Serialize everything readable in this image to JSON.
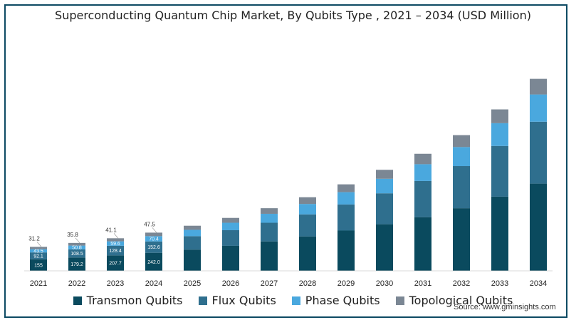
{
  "title": "Superconducting Quantum Chip Market, By Qubits Type , 2021 – 2034 (USD Million)",
  "source": "Source: www.gminsights.com",
  "colors": {
    "Transmon Qubits": "#0a4a5e",
    "Flux Qubits": "#2f6f8e",
    "Phase Qubits": "#4aa8de",
    "Topological Qubits": "#7b8794",
    "frame": "#0d4a63"
  },
  "chart_data": {
    "type": "bar",
    "stacked": true,
    "title": "Superconducting Quantum Chip Market, By Qubits Type , 2021 – 2034 (USD Million)",
    "categories": [
      "2021",
      "2022",
      "2023",
      "2024",
      "2025",
      "2026",
      "2027",
      "2028",
      "2029",
      "2030",
      "2031",
      "2032",
      "2033",
      "2034"
    ],
    "series": [
      {
        "name": "Transmon Qubits",
        "values": [
          155,
          179.2,
          207.7,
          242.0,
          285,
          335,
          395,
          462,
          540,
          625,
          720,
          840,
          995,
          1170
        ],
        "labels": [
          "155",
          "179.2",
          "207.7",
          "242.0",
          "",
          "",
          "",
          "",
          "",
          "",
          "",
          "",
          "",
          ""
        ]
      },
      {
        "name": "Flux Qubits",
        "values": [
          92.1,
          108.5,
          128.4,
          152.6,
          180,
          210,
          250,
          295,
          350,
          415,
          485,
          565,
          680,
          830
        ],
        "labels": [
          "92.1",
          "108.5",
          "128.4",
          "152.6",
          "",
          "",
          "",
          "",
          "",
          "",
          "",
          "",
          "",
          ""
        ]
      },
      {
        "name": "Phase Qubits",
        "values": [
          43.5,
          50.8,
          59.6,
          70.4,
          85,
          100,
          120,
          140,
          165,
          195,
          225,
          255,
          305,
          365
        ],
        "labels": [
          "43.5",
          "50.8",
          "59.6",
          "70.4",
          "",
          "",
          "",
          "",
          "",
          "",
          "",
          "",
          "",
          ""
        ]
      },
      {
        "name": "Topological Qubits",
        "values": [
          31.2,
          35.8,
          41.1,
          47.5,
          55,
          65,
          75,
          90,
          105,
          120,
          140,
          160,
          185,
          210
        ],
        "labels": [
          "31.2",
          "35.8",
          "41.1",
          "47.5",
          "",
          "",
          "",
          "",
          "",
          "",
          "",
          "",
          "",
          ""
        ]
      }
    ],
    "ylim": [
      0,
      2600
    ],
    "grid": false,
    "legend": "bottom"
  }
}
